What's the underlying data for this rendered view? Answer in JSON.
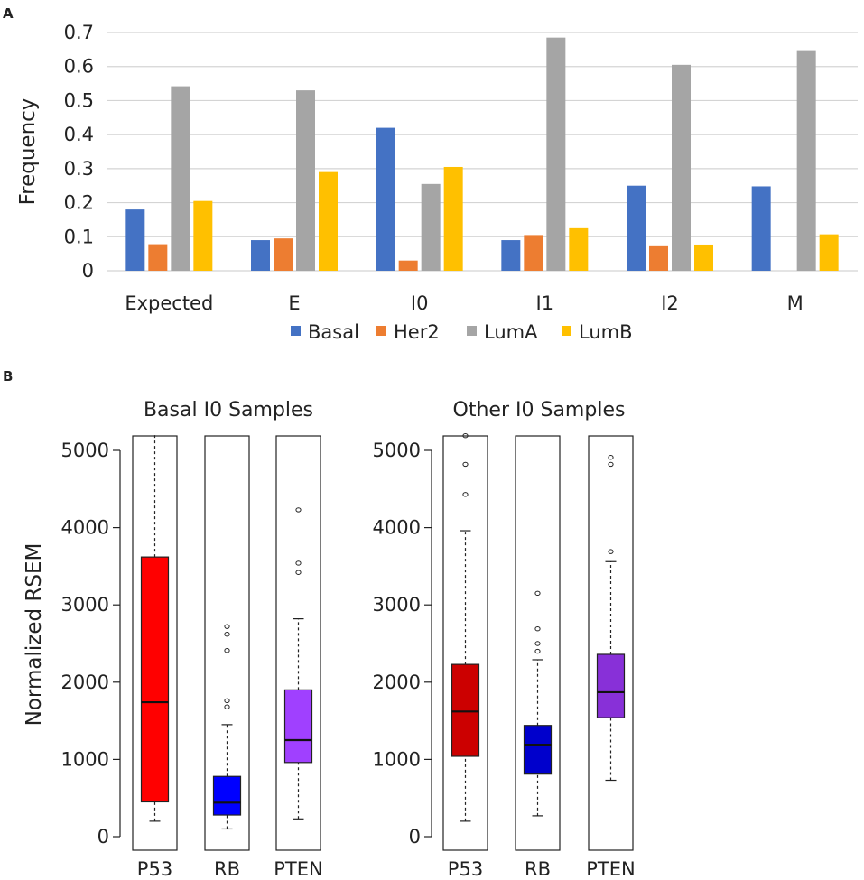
{
  "panels": {
    "a_label": "A",
    "b_label": "B"
  },
  "chart_data": [
    {
      "type": "bar",
      "panel": "A",
      "title": "",
      "xlabel": "",
      "ylabel": "Frequency",
      "ylim": [
        0,
        0.7
      ],
      "yticks": [
        "0",
        "0.1",
        "0.2",
        "0.3",
        "0.4",
        "0.5",
        "0.6",
        "0.7"
      ],
      "ytick_values": [
        0,
        0.1,
        0.2,
        0.3,
        0.4,
        0.5,
        0.6,
        0.7
      ],
      "grid": true,
      "legend": "bottom",
      "categories": [
        "Expected",
        "E",
        "I0",
        "I1",
        "I2",
        "M"
      ],
      "series": [
        {
          "name": "Basal",
          "color": "#4472c4",
          "values": [
            0.18,
            0.09,
            0.42,
            0.09,
            0.25,
            0.248
          ]
        },
        {
          "name": "Her2",
          "color": "#ed7d31",
          "values": [
            0.078,
            0.095,
            0.03,
            0.105,
            0.072,
            0
          ]
        },
        {
          "name": "LumA",
          "color": "#a5a5a5",
          "values": [
            0.542,
            0.53,
            0.255,
            0.685,
            0.605,
            0.648
          ]
        },
        {
          "name": "LumB",
          "color": "#ffc000",
          "values": [
            0.205,
            0.29,
            0.305,
            0.125,
            0.077,
            0.107
          ]
        }
      ]
    },
    {
      "type": "boxplot",
      "panel": "B",
      "ylabel": "Normalized RSEM",
      "ylim": [
        0,
        5200
      ],
      "yticks": [
        "0",
        "1000",
        "2000",
        "3000",
        "4000",
        "5000"
      ],
      "ytick_values": [
        0,
        1000,
        2000,
        3000,
        4000,
        5000
      ],
      "groups": [
        {
          "title": "Basal I0 Samples",
          "boxes": [
            {
              "label": "P53",
              "color": "#ff0000",
              "whisker_low": 200,
              "q1": 450,
              "median": 1740,
              "q3": 3620,
              "whisker_high": 5200,
              "outliers": []
            },
            {
              "label": "RB",
              "color": "#0000ff",
              "whisker_low": 100,
              "q1": 280,
              "median": 440,
              "q3": 780,
              "whisker_high": 1450,
              "outliers": [
                1680,
                1760,
                2410,
                2620,
                2720
              ]
            },
            {
              "label": "PTEN",
              "color": "#a040ff",
              "whisker_low": 230,
              "q1": 960,
              "median": 1250,
              "q3": 1900,
              "whisker_high": 2820,
              "outliers": [
                3420,
                3540,
                4230
              ]
            }
          ]
        },
        {
          "title": "Other I0 Samples",
          "boxes": [
            {
              "label": "P53",
              "color": "#cc0000",
              "whisker_low": 200,
              "q1": 1040,
              "median": 1620,
              "q3": 2230,
              "whisker_high": 3960,
              "outliers": [
                4430,
                4820,
                5190
              ]
            },
            {
              "label": "RB",
              "color": "#0000cc",
              "whisker_low": 270,
              "q1": 810,
              "median": 1190,
              "q3": 1440,
              "whisker_high": 2290,
              "outliers": [
                2400,
                2500,
                2690,
                3150
              ]
            },
            {
              "label": "PTEN",
              "color": "#8830d8",
              "whisker_low": 730,
              "q1": 1540,
              "median": 1870,
              "q3": 2360,
              "whisker_high": 3560,
              "outliers": [
                3690,
                4820,
                4910
              ]
            }
          ]
        }
      ]
    }
  ]
}
